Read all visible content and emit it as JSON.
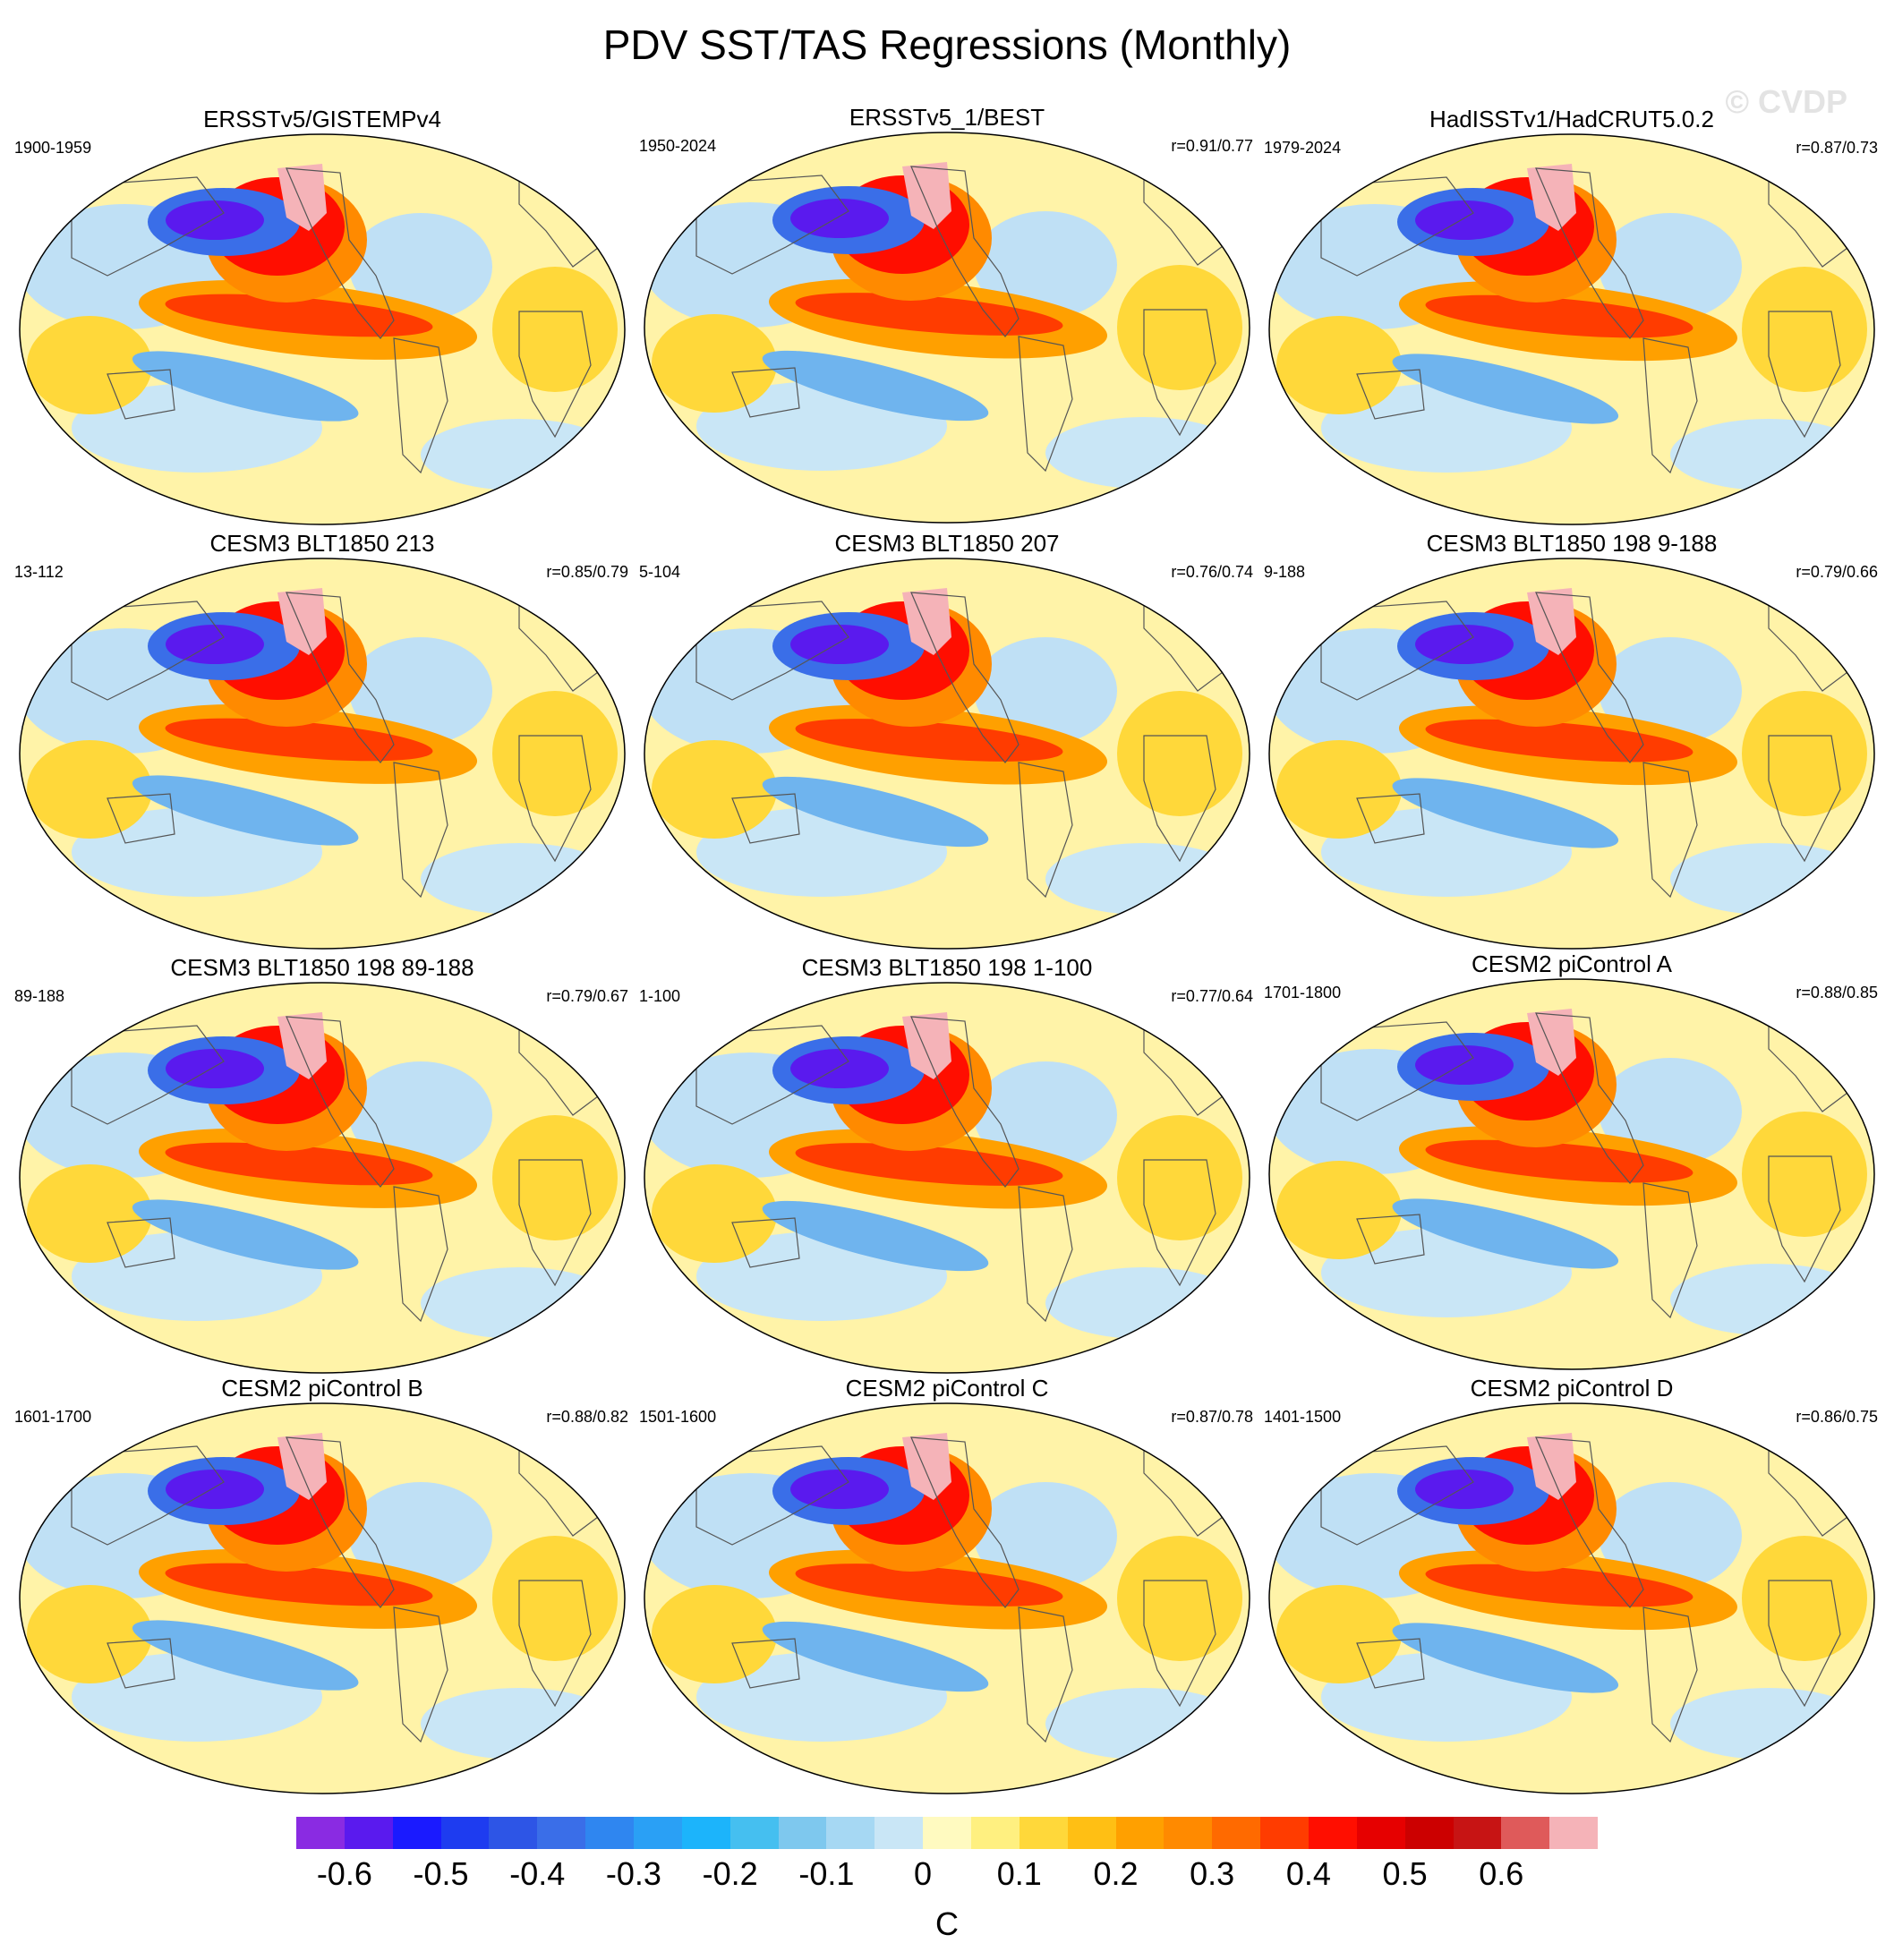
{
  "title": "PDV SST/TAS Regressions (Monthly)",
  "watermark": "© CVDP",
  "panels": [
    {
      "title": "ERSSTv5/GISTEMPv4",
      "period": "1900-1959",
      "corr": ""
    },
    {
      "title": "ERSSTv5_1/BEST",
      "period": "1950-2024",
      "corr": "r=0.91/0.77"
    },
    {
      "title": "HadISSTv1/HadCRUT5.0.2",
      "period": "1979-2024",
      "corr": "r=0.87/0.73"
    },
    {
      "title": "CESM3 BLT1850 213",
      "period": "13-112",
      "corr": "r=0.85/0.79"
    },
    {
      "title": "CESM3 BLT1850 207",
      "period": "5-104",
      "corr": "r=0.76/0.74"
    },
    {
      "title": "CESM3 BLT1850 198 9-188",
      "period": "9-188",
      "corr": "r=0.79/0.66"
    },
    {
      "title": "CESM3 BLT1850 198 89-188",
      "period": "89-188",
      "corr": "r=0.79/0.67"
    },
    {
      "title": "CESM3 BLT1850 198 1-100",
      "period": "1-100",
      "corr": "r=0.77/0.64"
    },
    {
      "title": "CESM2 piControl A",
      "period": "1701-1800",
      "corr": "r=0.88/0.85"
    },
    {
      "title": "CESM2 piControl B",
      "period": "1601-1700",
      "corr": "r=0.88/0.82"
    },
    {
      "title": "CESM2 piControl C",
      "period": "1501-1600",
      "corr": "r=0.87/0.78"
    },
    {
      "title": "CESM2 piControl D",
      "period": "1401-1500",
      "corr": "r=0.86/0.75"
    }
  ],
  "colorbar": {
    "colors": [
      "#8a2be2",
      "#5a1aee",
      "#1a1aff",
      "#1e3cf0",
      "#2d55e6",
      "#3a6ee8",
      "#2f86f0",
      "#2aa0f5",
      "#1cb4fb",
      "#45bff0",
      "#7ec8ee",
      "#a6d8f3",
      "#c9e6f6",
      "#fffac0",
      "#fff080",
      "#ffd83a",
      "#ffbf14",
      "#ffa000",
      "#ff8a00",
      "#ff6a00",
      "#ff3c00",
      "#ff0e00",
      "#e60000",
      "#cc0000",
      "#c71414",
      "#df5a5a",
      "#f5b3b8"
    ],
    "labels": [
      "-0.6",
      "-0.5",
      "-0.4",
      "-0.3",
      "-0.2",
      "-0.1",
      "0",
      "0.1",
      "0.2",
      "0.3",
      "0.4",
      "0.5",
      "0.6"
    ],
    "unit": "C"
  }
}
